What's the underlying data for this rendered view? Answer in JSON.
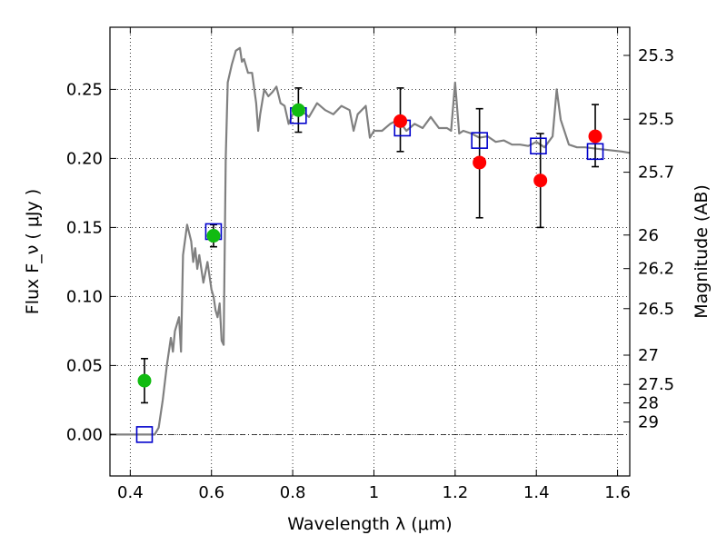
{
  "chart_data": {
    "type": "scatter",
    "xlabel": "Wavelength  λ (μm)",
    "ylabel": "Flux  F_ν  ( μJy )",
    "ylabel_right": "Magnitude (AB)",
    "xlim": [
      0.35,
      1.63
    ],
    "ylim": [
      -0.03,
      0.295
    ],
    "x_ticks": [
      0.4,
      0.6,
      0.8,
      1.0,
      1.2,
      1.4,
      1.6
    ],
    "x_tick_labels": [
      "0.4",
      "0.6",
      "0.8",
      "1",
      "1.2",
      "1.4",
      "1.6"
    ],
    "y_ticks": [
      0.0,
      0.05,
      0.1,
      0.15,
      0.2,
      0.25
    ],
    "y_tick_labels": [
      "0.00",
      "0.05",
      "0.10",
      "0.15",
      "0.20",
      "0.25"
    ],
    "right_ticks": [
      {
        "label": "25.3",
        "flux": 0.2746
      },
      {
        "label": "25.5",
        "flux": 0.2284
      },
      {
        "label": "25.7",
        "flux": 0.19
      },
      {
        "label": "26",
        "flux": 0.1445
      },
      {
        "label": "26.2",
        "flux": 0.1202
      },
      {
        "label": "26.5",
        "flux": 0.0912
      },
      {
        "label": "27",
        "flux": 0.0575
      },
      {
        "label": "27.5",
        "flux": 0.0363
      },
      {
        "label": "28",
        "flux": 0.0229
      },
      {
        "label": "29",
        "flux": 0.0091
      }
    ],
    "grid": true,
    "colors": {
      "model": "#808080",
      "green_points": "#11bb11",
      "red_points": "#ff0000",
      "squares": "#0000cc",
      "errorbars": "#000000"
    },
    "series": [
      {
        "kind": "line",
        "points": [
          [
            0.35,
            0.0
          ],
          [
            0.43,
            0.0
          ],
          [
            0.46,
            0.0
          ],
          [
            0.47,
            0.005
          ],
          [
            0.48,
            0.025
          ],
          [
            0.49,
            0.05
          ],
          [
            0.5,
            0.07
          ],
          [
            0.505,
            0.06
          ],
          [
            0.51,
            0.075
          ],
          [
            0.52,
            0.085
          ],
          [
            0.525,
            0.06
          ],
          [
            0.53,
            0.13
          ],
          [
            0.54,
            0.152
          ],
          [
            0.55,
            0.14
          ],
          [
            0.555,
            0.125
          ],
          [
            0.56,
            0.135
          ],
          [
            0.565,
            0.12
          ],
          [
            0.57,
            0.13
          ],
          [
            0.58,
            0.11
          ],
          [
            0.59,
            0.125
          ],
          [
            0.6,
            0.105
          ],
          [
            0.605,
            0.1
          ],
          [
            0.61,
            0.09
          ],
          [
            0.615,
            0.085
          ],
          [
            0.62,
            0.095
          ],
          [
            0.625,
            0.068
          ],
          [
            0.63,
            0.065
          ],
          [
            0.635,
            0.2
          ],
          [
            0.64,
            0.255
          ],
          [
            0.65,
            0.268
          ],
          [
            0.66,
            0.278
          ],
          [
            0.67,
            0.28
          ],
          [
            0.675,
            0.27
          ],
          [
            0.68,
            0.272
          ],
          [
            0.69,
            0.262
          ],
          [
            0.7,
            0.262
          ],
          [
            0.71,
            0.24
          ],
          [
            0.715,
            0.22
          ],
          [
            0.72,
            0.232
          ],
          [
            0.73,
            0.25
          ],
          [
            0.74,
            0.245
          ],
          [
            0.75,
            0.248
          ],
          [
            0.76,
            0.252
          ],
          [
            0.77,
            0.24
          ],
          [
            0.78,
            0.238
          ],
          [
            0.79,
            0.225
          ],
          [
            0.8,
            0.232
          ],
          [
            0.82,
            0.235
          ],
          [
            0.84,
            0.23
          ],
          [
            0.86,
            0.24
          ],
          [
            0.88,
            0.235
          ],
          [
            0.9,
            0.232
          ],
          [
            0.92,
            0.238
          ],
          [
            0.94,
            0.235
          ],
          [
            0.95,
            0.22
          ],
          [
            0.96,
            0.232
          ],
          [
            0.98,
            0.238
          ],
          [
            0.99,
            0.215
          ],
          [
            1.0,
            0.22
          ],
          [
            1.02,
            0.22
          ],
          [
            1.04,
            0.225
          ],
          [
            1.06,
            0.228
          ],
          [
            1.08,
            0.22
          ],
          [
            1.1,
            0.225
          ],
          [
            1.12,
            0.222
          ],
          [
            1.14,
            0.23
          ],
          [
            1.16,
            0.222
          ],
          [
            1.18,
            0.222
          ],
          [
            1.19,
            0.22
          ],
          [
            1.2,
            0.255
          ],
          [
            1.21,
            0.218
          ],
          [
            1.22,
            0.22
          ],
          [
            1.24,
            0.218
          ],
          [
            1.26,
            0.215
          ],
          [
            1.28,
            0.216
          ],
          [
            1.3,
            0.212
          ],
          [
            1.32,
            0.213
          ],
          [
            1.34,
            0.21
          ],
          [
            1.36,
            0.21
          ],
          [
            1.38,
            0.209
          ],
          [
            1.4,
            0.212
          ],
          [
            1.42,
            0.208
          ],
          [
            1.44,
            0.216
          ],
          [
            1.45,
            0.25
          ],
          [
            1.46,
            0.228
          ],
          [
            1.48,
            0.21
          ],
          [
            1.5,
            0.208
          ],
          [
            1.52,
            0.208
          ],
          [
            1.55,
            0.207
          ],
          [
            1.58,
            0.206
          ],
          [
            1.61,
            0.205
          ],
          [
            1.63,
            0.204
          ]
        ]
      },
      {
        "kind": "circles",
        "color": "green",
        "points": [
          {
            "x": 0.435,
            "y": 0.039,
            "err_lo": 0.016,
            "err_hi": 0.016
          },
          {
            "x": 0.605,
            "y": 0.144,
            "err_lo": 0.008,
            "err_hi": 0.008
          },
          {
            "x": 0.814,
            "y": 0.235,
            "err_lo": 0.016,
            "err_hi": 0.016
          }
        ]
      },
      {
        "kind": "circles",
        "color": "red",
        "points": [
          {
            "x": 1.065,
            "y": 0.227,
            "err_lo": 0.022,
            "err_hi": 0.024
          },
          {
            "x": 1.26,
            "y": 0.197,
            "err_lo": 0.04,
            "err_hi": 0.039
          },
          {
            "x": 1.41,
            "y": 0.184,
            "err_lo": 0.034,
            "err_hi": 0.034
          },
          {
            "x": 1.545,
            "y": 0.216,
            "err_lo": 0.022,
            "err_hi": 0.023
          }
        ]
      },
      {
        "kind": "squares",
        "points": [
          {
            "x": 0.435,
            "y": 0.0
          },
          {
            "x": 0.605,
            "y": 0.147
          },
          {
            "x": 0.814,
            "y": 0.231
          },
          {
            "x": 1.07,
            "y": 0.222
          },
          {
            "x": 1.26,
            "y": 0.213
          },
          {
            "x": 1.405,
            "y": 0.209
          },
          {
            "x": 1.545,
            "y": 0.205
          }
        ]
      }
    ]
  }
}
